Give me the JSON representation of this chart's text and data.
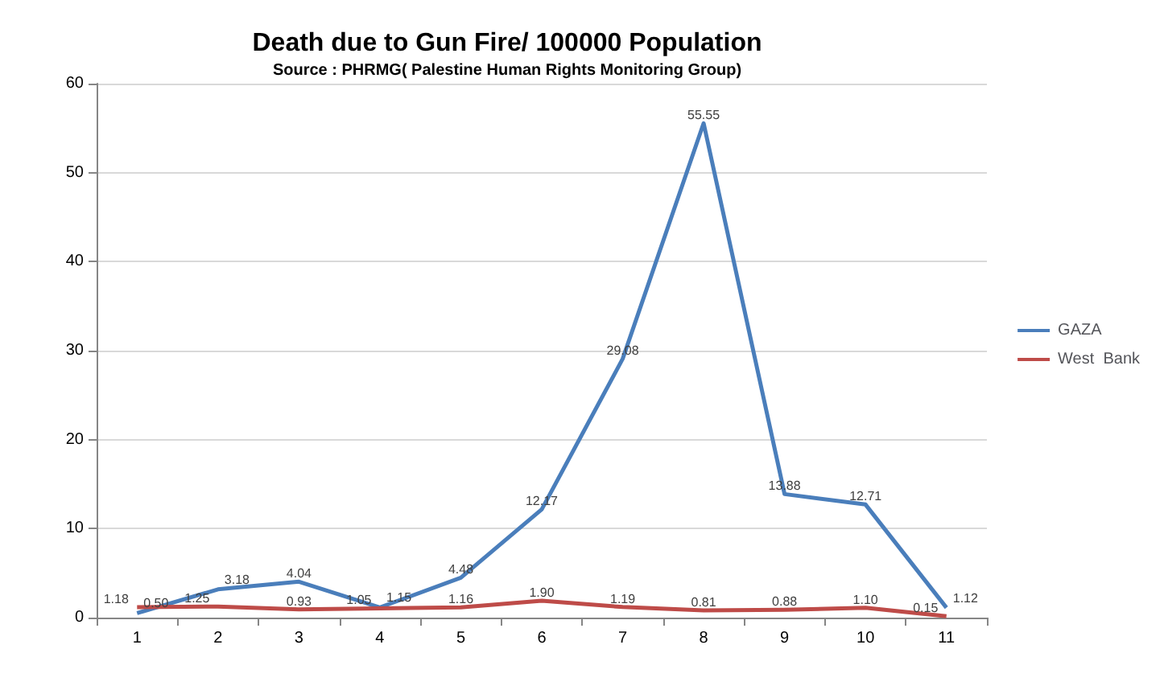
{
  "chart_data": {
    "type": "line",
    "title": "Death due to Gun Fire/ 100000 Population",
    "subtitle": "Source : PHRMG( Palestine Human Rights Monitoring Group)",
    "categories": [
      "1",
      "2",
      "3",
      "4",
      "5",
      "6",
      "7",
      "8",
      "9",
      "10",
      "11"
    ],
    "series": [
      {
        "name": "GAZA",
        "color": "#4a7ebb",
        "values": [
          0.5,
          3.18,
          4.04,
          1.15,
          4.48,
          12.17,
          29.08,
          55.55,
          13.88,
          12.71,
          1.12
        ],
        "value_labels": [
          "0.50",
          "3.18",
          "4.04",
          "1.15",
          "4.48",
          "12.17",
          "29.08",
          "55.55",
          "13.88",
          "12.71",
          "1.12"
        ]
      },
      {
        "name": "West  Bank",
        "color": "#be4b48",
        "values": [
          1.18,
          1.25,
          0.93,
          1.05,
          1.16,
          1.9,
          1.19,
          0.81,
          0.88,
          1.1,
          0.15
        ],
        "value_labels": [
          "1.18",
          "1.25",
          "0.93",
          "1.05",
          "1.16",
          "1.90",
          "1.19",
          "0.81",
          "0.88",
          "1.10",
          "0.15"
        ]
      }
    ],
    "ylim": [
      0,
      60
    ],
    "yticks": [
      0,
      10,
      20,
      30,
      40,
      50,
      60
    ],
    "grid": "y",
    "legend": "right",
    "marker": "none",
    "line_style": "solid"
  }
}
